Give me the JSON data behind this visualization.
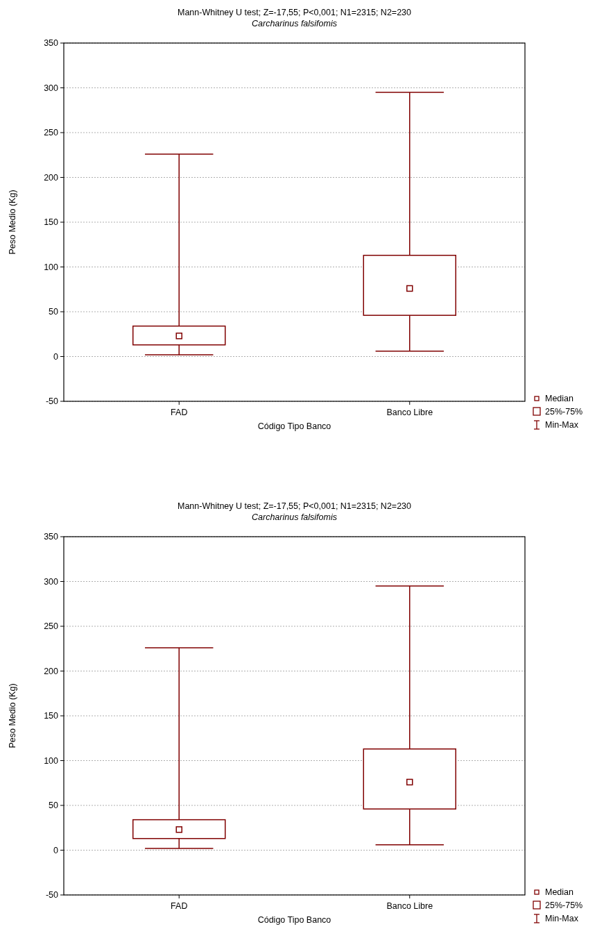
{
  "chart_data": [
    {
      "type": "box",
      "title": "Mann-Whitney U test; Z=-17,55; P<0,001; N1=2315; N2=230",
      "subtitle": "Carcharinus falsifomis",
      "xlabel": "Código Tipo Banco",
      "ylabel": "Peso Medio (Kg)",
      "categories": [
        "FAD",
        "Banco Libre"
      ],
      "color": "#800000",
      "boxes": [
        {
          "low": 2,
          "q1": 13,
          "median": 23,
          "q3": 34,
          "high": 226
        },
        {
          "low": 6,
          "q1": 46,
          "median": 76,
          "q3": 113,
          "high": 295
        }
      ],
      "ylim": [
        -50,
        350
      ],
      "yticks": [
        -50,
        0,
        50,
        100,
        150,
        200,
        250,
        300,
        350
      ],
      "grid": "y",
      "annotations": [
        "Median",
        "25%-75%",
        "Min-Max"
      ]
    },
    {
      "type": "box",
      "title": "Mann-Whitney U test; Z=-17,55; P<0,001; N1=2315; N2=230",
      "subtitle": "Carcharinus falsifomis",
      "xlabel": "Código Tipo Banco",
      "ylabel": "Peso Medio (Kg)",
      "categories": [
        "FAD",
        "Banco Libre"
      ],
      "color": "#800000",
      "boxes": [
        {
          "low": 2,
          "q1": 13,
          "median": 23,
          "q3": 34,
          "high": 226
        },
        {
          "low": 6,
          "q1": 46,
          "median": 76,
          "q3": 113,
          "high": 295
        }
      ],
      "ylim": [
        -50,
        350
      ],
      "yticks": [
        -50,
        0,
        50,
        100,
        150,
        200,
        250,
        300,
        350
      ],
      "grid": "y",
      "annotations": [
        "Median",
        "25%-75%",
        "Min-Max"
      ]
    }
  ]
}
